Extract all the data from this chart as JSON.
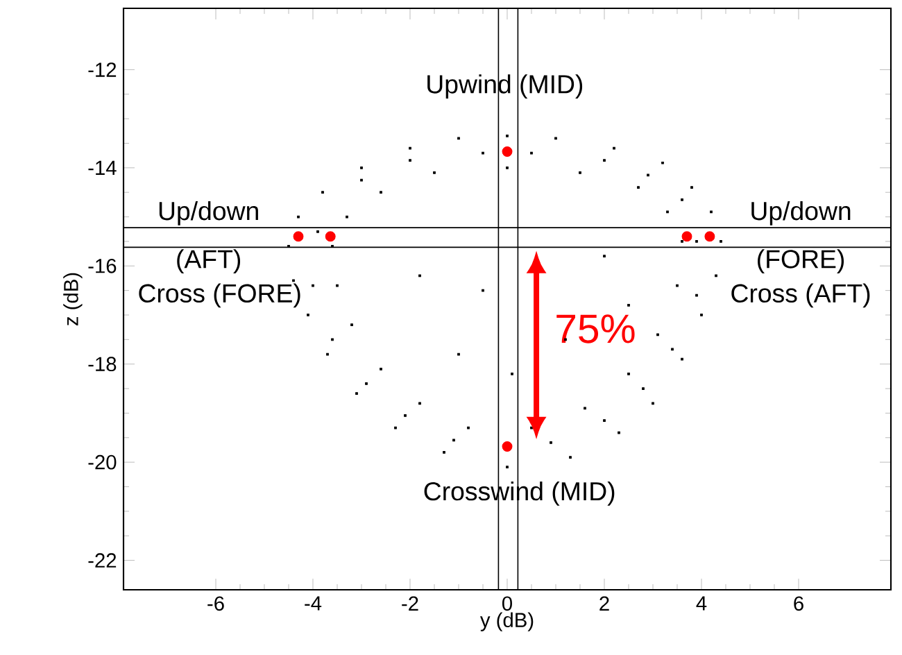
{
  "chart_data": {
    "type": "scatter",
    "xlabel": "y (dB)",
    "ylabel": "z (dB)",
    "xlim": [
      -7.9,
      7.9
    ],
    "ylim": [
      -22.6,
      -10.75
    ],
    "xticks": [
      -6,
      -4,
      -2,
      0,
      2,
      4,
      6
    ],
    "yticks": [
      -22,
      -20,
      -18,
      -16,
      -14,
      -12
    ],
    "grid": false,
    "series": [
      {
        "color": "#000000",
        "marker": "square",
        "x": [
          0,
          -1,
          -2,
          -3,
          -3.8,
          -4.3,
          -4.5,
          -4.4,
          -4.1,
          -3.7,
          -3.1,
          -2.3,
          -1.3,
          0,
          1.3,
          2.3,
          3.0,
          3.6,
          4.0,
          4.3,
          4.4,
          4.2,
          3.8,
          3.2,
          2.2,
          1.0,
          0,
          -1.5,
          -2.6,
          -3.3,
          -3.6,
          -3.5,
          -3.2,
          -2.6,
          -1.8,
          -0.8,
          0.5,
          1.6,
          2.5,
          3.1,
          3.5,
          3.6,
          3.3,
          2.7,
          1.5,
          -0.5,
          1.2,
          -1.8,
          2.0,
          0.1,
          -1.0,
          2.5,
          -0.5,
          -2.0,
          -3.0,
          -3.9,
          -4.0,
          -3.6,
          -2.9,
          -2.1,
          -1.1,
          0.9,
          2.0,
          2.8,
          3.4,
          3.9,
          3.9,
          3.6,
          2.9,
          2.0,
          0.5
        ],
        "values": [
          -13.35,
          -13.4,
          -13.6,
          -14.0,
          -14.5,
          -15.0,
          -15.6,
          -16.3,
          -17.0,
          -17.8,
          -18.6,
          -19.3,
          -19.8,
          -20.1,
          -19.9,
          -19.4,
          -18.8,
          -17.9,
          -17.0,
          -16.2,
          -15.5,
          -14.9,
          -14.4,
          -13.9,
          -13.6,
          -13.4,
          -14.0,
          -14.1,
          -14.5,
          -15.0,
          -15.6,
          -16.4,
          -17.2,
          -18.1,
          -18.8,
          -19.3,
          -19.3,
          -18.9,
          -18.2,
          -17.4,
          -16.4,
          -15.5,
          -14.9,
          -14.4,
          -14.1,
          -16.5,
          -17.5,
          -16.2,
          -15.8,
          -18.2,
          -17.8,
          -16.8,
          -13.7,
          -13.85,
          -14.25,
          -15.3,
          -16.4,
          -17.5,
          -18.4,
          -19.05,
          -19.55,
          -19.6,
          -19.15,
          -18.5,
          -17.7,
          -16.6,
          -15.5,
          -14.65,
          -14.15,
          -13.85,
          -13.7
        ]
      },
      {
        "color": "#ff0000",
        "marker": "circle",
        "x": [
          0,
          0,
          -4.3,
          -3.64,
          3.7,
          4.17
        ],
        "values": [
          -13.67,
          -19.68,
          -15.4,
          -15.4,
          -15.4,
          -15.4
        ]
      }
    ],
    "ref_lines": [
      {
        "axis": "x",
        "value": -0.18
      },
      {
        "axis": "x",
        "value": 0.22
      },
      {
        "axis": "y",
        "value": -15.22
      },
      {
        "axis": "y",
        "value": -15.62
      }
    ],
    "annotations": [
      "Upwind (MID)",
      "Up/down (AFT)",
      "Cross (FORE)",
      "Up/down (FORE)",
      "Cross (AFT)",
      "Crosswind (MID)",
      "75%"
    ]
  }
}
